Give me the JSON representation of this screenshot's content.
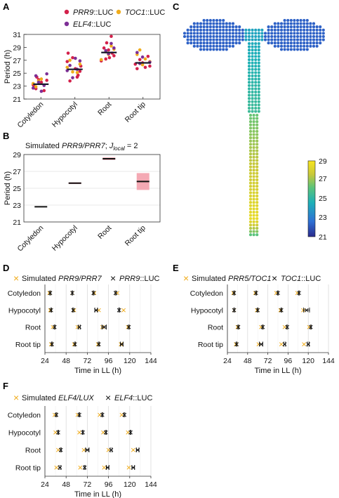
{
  "panels": {
    "A": {
      "label": "A",
      "legend": [
        {
          "gene": "PRR9",
          "suffix": "::LUC",
          "color": "#d3214b"
        },
        {
          "gene": "TOC1",
          "suffix": "::LUC",
          "color": "#f0ac1c"
        },
        {
          "gene": "ELF4",
          "suffix": "::LUC",
          "color": "#7d2f96"
        }
      ]
    },
    "B": {
      "label": "B",
      "title_prefix": "Simulated ",
      "title_genes": "PRR9/PRR7",
      "title_sep": "; ",
      "title_j": "J",
      "title_sub": "local",
      "title_suffix": " = 2"
    },
    "C": {
      "label": "C",
      "colorbar_ticks": [
        "29",
        "27",
        "25",
        "23",
        "21"
      ]
    },
    "D": {
      "label": "D",
      "legend_sim_prefix": "Simulated ",
      "legend_sim_genes": "PRR9/PRR7",
      "legend_obs_gene": "PRR9",
      "legend_obs_suffix": "::LUC"
    },
    "E": {
      "label": "E",
      "legend_sim_prefix": "Simulated ",
      "legend_sim_genes": "PRR5/TOC1",
      "legend_obs_gene": "TOC1",
      "legend_obs_suffix": "::LUC"
    },
    "F": {
      "label": "F",
      "legend_sim_prefix": "Simulated ",
      "legend_sim_genes": "ELF4/LUX",
      "legend_obs_gene": "ELF4",
      "legend_obs_suffix": "::LUC"
    }
  },
  "colors": {
    "sim_marker": "#f0ac1c",
    "obs_marker": "#111111",
    "mean_bar": "#1a1a2e",
    "sd_band": "#f4a9b4"
  },
  "chart_data": [
    {
      "panel": "A",
      "type": "scatter",
      "categories": [
        "Cotyledon",
        "Hypocotyl",
        "Root",
        "Root tip"
      ],
      "ylabel": "Period (h)",
      "ylim": [
        21,
        31
      ],
      "yticks": [
        21,
        23,
        25,
        27,
        29,
        31
      ],
      "means": [
        23.3,
        25.6,
        28.2,
        26.6
      ],
      "series": [
        {
          "name": "PRR9::LUC",
          "color": "#d3214b",
          "values": [
            [
              23.2,
              22.6,
              24.0,
              23.6,
              22.3,
              23.9,
              23.0,
              24.4
            ],
            [
              24.4,
              25.3,
              26.8,
              23.8,
              27.4,
              25.7,
              24.7,
              26.1,
              28.1
            ],
            [
              27.2,
              28.6,
              30.7,
              27.7,
              26.9,
              28.9,
              29.7,
              27.4,
              28.1
            ],
            [
              26.1,
              25.7,
              27.1,
              26.6,
              25.9,
              27.6,
              26.4
            ]
          ]
        },
        {
          "name": "TOC1::LUC",
          "color": "#f0ac1c",
          "values": [
            [
              23.4,
              22.9,
              23.8,
              24.1
            ],
            [
              25.1,
              26.4,
              25.9,
              27.0,
              25.2
            ],
            [
              28.3,
              27.9,
              29.2,
              28.7,
              27.1
            ],
            [
              26.8,
              27.9,
              28.6,
              26.3,
              27.2
            ]
          ]
        },
        {
          "name": "ELF4::LUC",
          "color": "#7d2f96",
          "values": [
            [
              22.7,
              24.6,
              23.6,
              22.2,
              23.1,
              24.9
            ],
            [
              25.6,
              26.9,
              25.4,
              26.2,
              24.3,
              27.3
            ],
            [
              28.5,
              28.0,
              29.6,
              28.9
            ],
            [
              26.7,
              28.2,
              26.5,
              27.5
            ]
          ]
        }
      ]
    },
    {
      "panel": "B",
      "type": "line",
      "categories": [
        "Cotyledon",
        "Hypocotyl",
        "Root",
        "Root tip"
      ],
      "ylabel": "Period (h)",
      "ylim": [
        21,
        29
      ],
      "yticks": [
        21,
        23,
        25,
        27,
        29
      ],
      "values": [
        22.8,
        25.6,
        28.5,
        25.8
      ],
      "sd": [
        0.0,
        0.1,
        0.15,
        1.0
      ]
    },
    {
      "panel": "D",
      "type": "scatter",
      "categories": [
        "Cotyledon",
        "Hypocotyl",
        "Root",
        "Root tip"
      ],
      "xlabel": "Time in LL (h)",
      "xlim": [
        24,
        144
      ],
      "xticks": [
        24,
        48,
        72,
        96,
        120,
        144
      ],
      "simulated": [
        [
          29,
          55,
          80,
          106
        ],
        [
          30,
          57,
          85,
          113
        ],
        [
          33,
          61,
          89,
          118
        ],
        [
          31,
          57,
          84,
          110
        ]
      ],
      "observed": [
        [
          30,
          55,
          79,
          104
        ],
        [
          31,
          56,
          82,
          108
        ],
        [
          35,
          63,
          91,
          119
        ],
        [
          32,
          58,
          85,
          111
        ]
      ],
      "observed_err": [
        [
          0.5,
          0.5,
          0.5,
          0.5
        ],
        [
          0.5,
          0.5,
          1.5,
          0.5
        ],
        [
          0.5,
          1.0,
          2.5,
          0.5
        ],
        [
          0.5,
          0.5,
          0.5,
          1.5
        ]
      ]
    },
    {
      "panel": "E",
      "type": "scatter",
      "categories": [
        "Cotyledon",
        "Hypocotyl",
        "Root",
        "Root tip"
      ],
      "xlabel": "Time in LL (h)",
      "xlim": [
        24,
        144
      ],
      "xticks": [
        24,
        48,
        72,
        96,
        120,
        144
      ],
      "simulated": [
        [
          31,
          57,
          82,
          107
        ],
        [
          32,
          59,
          87,
          114
        ],
        [
          36,
          64,
          92,
          121
        ],
        [
          34,
          61,
          88,
          115
        ]
      ],
      "observed": [
        [
          32,
          58,
          84,
          109
        ],
        [
          32,
          60,
          88,
          118
        ],
        [
          37,
          66,
          95,
          123
        ],
        [
          35,
          64,
          92,
          120
        ]
      ],
      "observed_err": [
        [
          0.5,
          0.5,
          0.5,
          0.5
        ],
        [
          0.5,
          0.5,
          0.5,
          3.5
        ],
        [
          0.5,
          0.5,
          0.5,
          0.5
        ],
        [
          0.5,
          2.0,
          1.0,
          1.0
        ]
      ]
    },
    {
      "panel": "F",
      "type": "scatter",
      "categories": [
        "Cotyledon",
        "Hypocotyl",
        "Root",
        "Root tip"
      ],
      "xlabel": "Time in LL (h)",
      "xlim": [
        24,
        144
      ],
      "xticks": [
        24,
        48,
        72,
        96,
        120,
        144
      ],
      "simulated": [
        [
          35,
          61,
          86,
          111
        ],
        [
          36,
          63,
          90,
          118
        ],
        [
          39,
          68,
          96,
          124
        ],
        [
          37,
          64,
          91,
          119
        ]
      ],
      "observed": [
        [
          37,
          63,
          89,
          114
        ],
        [
          39,
          67,
          93,
          121
        ],
        [
          42,
          72,
          99,
          129
        ],
        [
          41,
          69,
          95,
          124
        ]
      ],
      "observed_err": [
        [
          0.5,
          0.5,
          0.5,
          0.5
        ],
        [
          0.5,
          0.5,
          0.5,
          0.5
        ],
        [
          0.5,
          2.0,
          1.0,
          1.5
        ],
        [
          1.0,
          0.5,
          1.5,
          1.5
        ]
      ]
    }
  ]
}
